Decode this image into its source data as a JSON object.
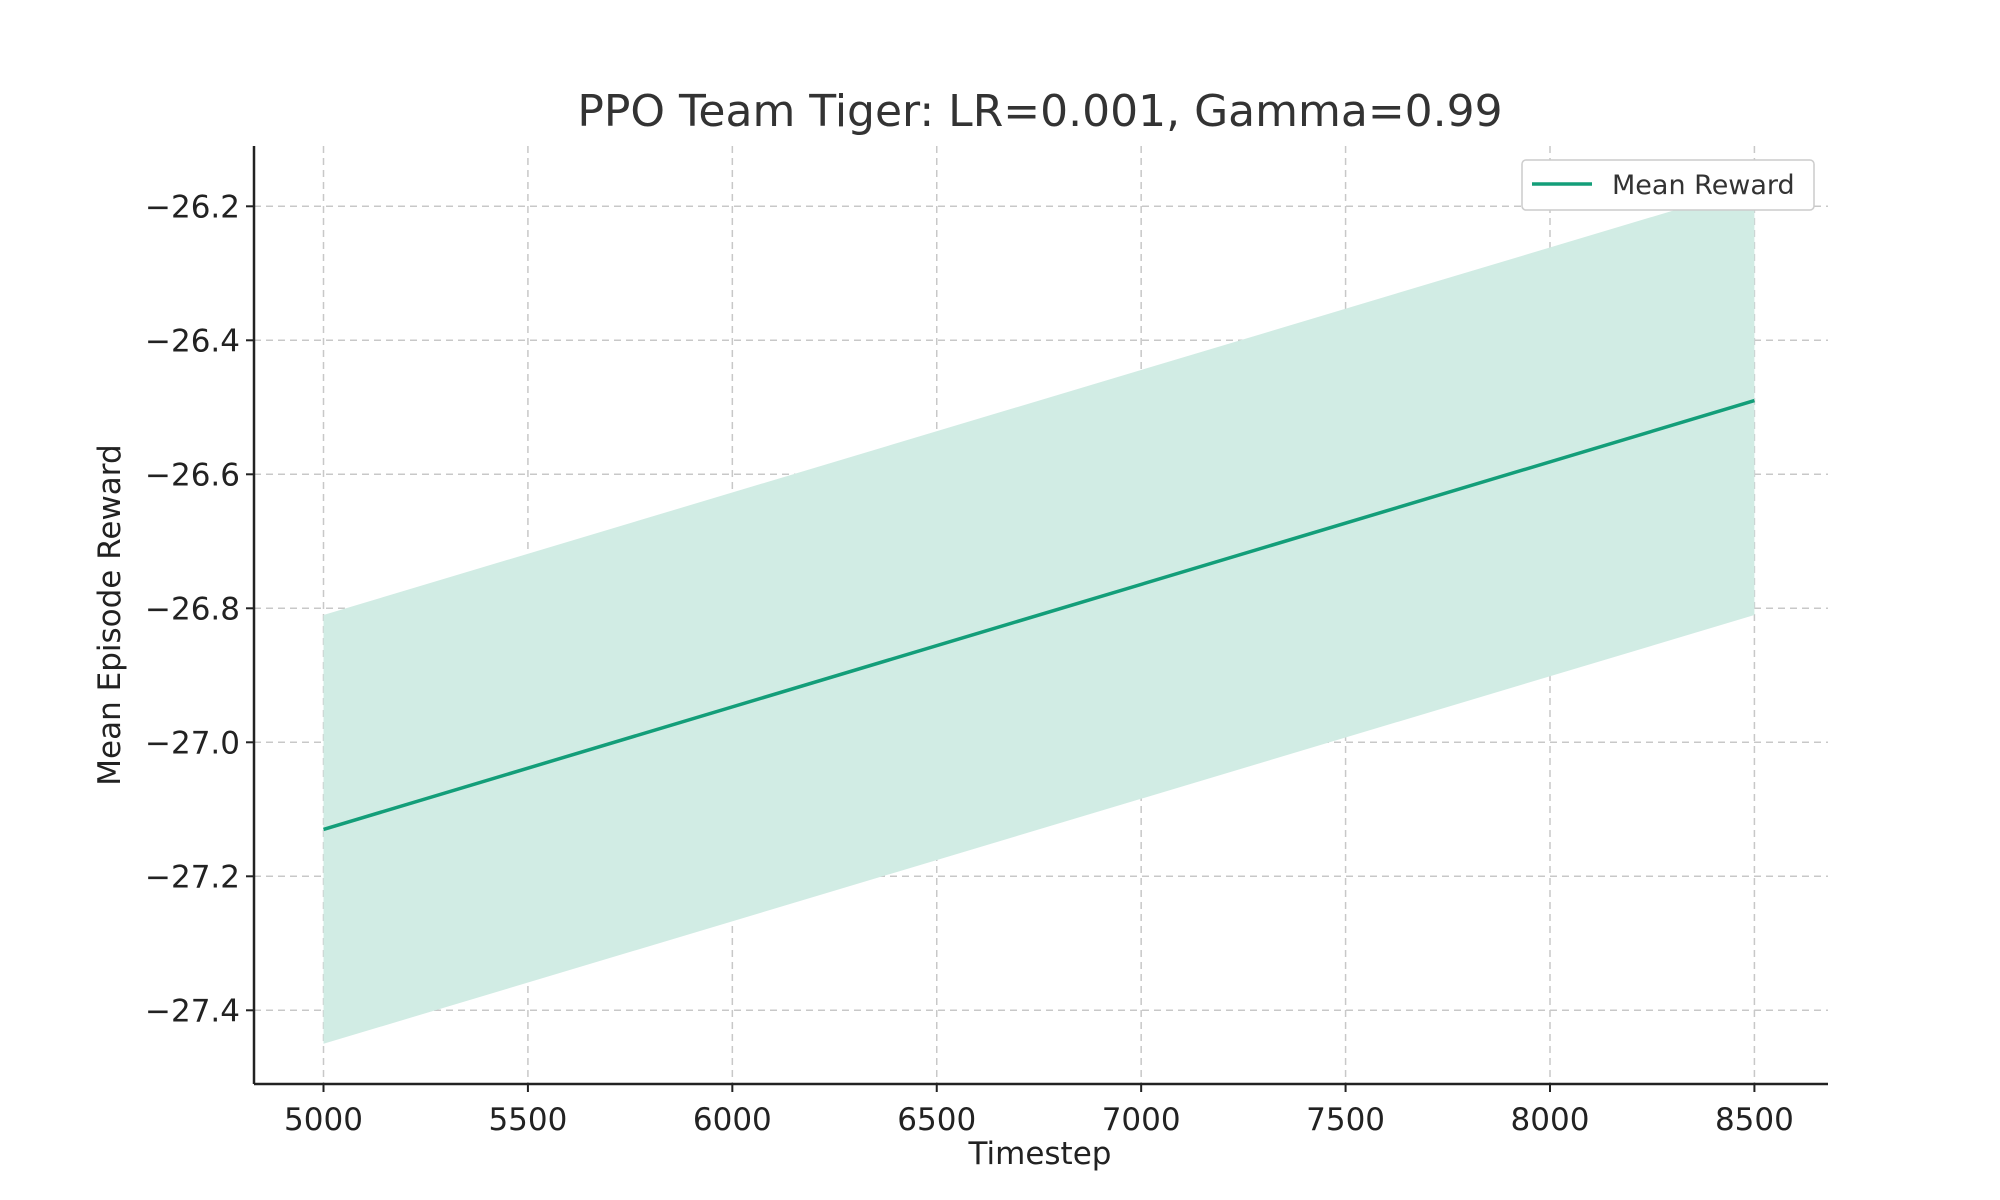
{
  "chart_data": {
    "type": "line",
    "title": "PPO Team Tiger: LR=0.001, Gamma=0.99",
    "xlabel": "Timestep",
    "ylabel": "Mean Episode Reward",
    "xlim": [
      4830,
      8680
    ],
    "ylim": [
      -27.51,
      -26.11
    ],
    "x_ticks": [
      5000,
      5500,
      6000,
      6500,
      7000,
      7500,
      8000,
      8500
    ],
    "y_ticks": [
      -26.2,
      -26.4,
      -26.6,
      -26.8,
      -27.0,
      -27.2,
      -27.4
    ],
    "y_tick_labels": [
      "−26.2",
      "−26.4",
      "−26.6",
      "−26.8",
      "−27.0",
      "−27.2",
      "−27.4"
    ],
    "grid": true,
    "legend_position": "top-right",
    "series": [
      {
        "name": "Mean Reward",
        "color": "#139e79",
        "x": [
          5000,
          8500
        ],
        "y": [
          -27.13,
          -26.49
        ],
        "band_lower": [
          -27.45,
          -26.81
        ],
        "band_upper": [
          -26.81,
          -26.17
        ],
        "band_color": "#d1ece4"
      }
    ]
  }
}
